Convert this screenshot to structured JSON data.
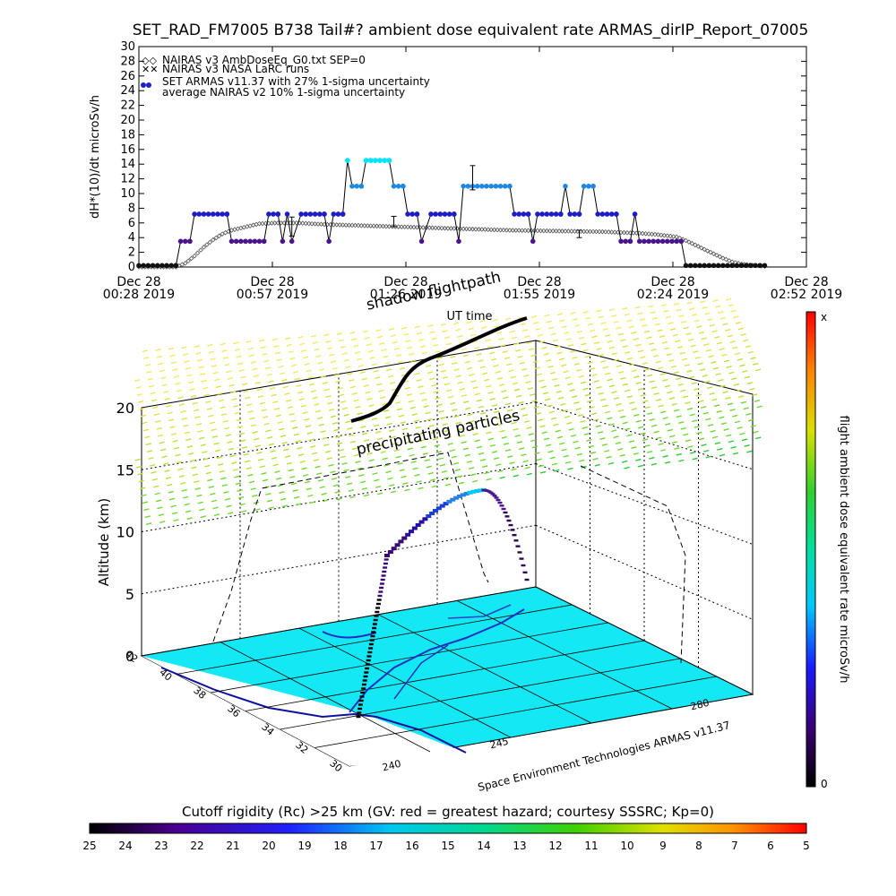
{
  "title": "SET_RAD_FM7005  B738 Tail#? ambient dose equivalent rate ARMAS_dirIP_Report_07005",
  "chart_data": [
    {
      "type": "line",
      "ylabel": "dH*(10)/dt microSv/h",
      "xlabel": "UT time",
      "ylim": [
        0,
        30
      ],
      "yticks": [
        "0",
        "2",
        "4",
        "6",
        "8",
        "10",
        "12",
        "14",
        "16",
        "18",
        "20",
        "22",
        "24",
        "26",
        "28",
        "30"
      ],
      "xtick_labels": [
        {
          "top": "Dec 28",
          "bottom": "00:28 2019"
        },
        {
          "top": "Dec 28",
          "bottom": "00:57 2019"
        },
        {
          "top": "Dec 28",
          "bottom": "01:26 2019"
        },
        {
          "top": "Dec 28",
          "bottom": "01:55 2019"
        },
        {
          "top": "Dec 28",
          "bottom": "02:24 2019"
        },
        {
          "top": "Dec 28",
          "bottom": "02:52 2019"
        }
      ],
      "x_minutes_domain": [
        0,
        144
      ],
      "legend": [
        "NAIRAS v3 AmbDoseEq_G0.txt SEP=0",
        "NAIRAS v3 NASA LaRC runs",
        "SET ARMAS v11.37 with 27% 1-sigma uncertainty",
        "average NAIRAS v2 10% 1-sigma uncertainty"
      ],
      "armas_series": [
        [
          0,
          0.2
        ],
        [
          8,
          0.2
        ],
        [
          9,
          3.5
        ],
        [
          11,
          3.5
        ],
        [
          12,
          7.2
        ],
        [
          19,
          7.2
        ],
        [
          20,
          3.5
        ],
        [
          27,
          3.5
        ],
        [
          28,
          7.2
        ],
        [
          30,
          7.2
        ],
        [
          31,
          3.5
        ],
        [
          32,
          7.2
        ],
        [
          33,
          3.5
        ],
        [
          35,
          7.2
        ],
        [
          40,
          7.2
        ],
        [
          41,
          3.5
        ],
        [
          42,
          7.2
        ],
        [
          44,
          7.2
        ],
        [
          45,
          14.5
        ],
        [
          46,
          11
        ],
        [
          48,
          11
        ],
        [
          49,
          14.5
        ],
        [
          54,
          14.5
        ],
        [
          55,
          11
        ],
        [
          57,
          11
        ],
        [
          58,
          7.2
        ],
        [
          60,
          7.2
        ],
        [
          61,
          3.5
        ],
        [
          63,
          7.2
        ],
        [
          68,
          7.2
        ],
        [
          69,
          3.5
        ],
        [
          70,
          11
        ],
        [
          80,
          11
        ],
        [
          81,
          7.2
        ],
        [
          84,
          7.2
        ],
        [
          85,
          3.5
        ],
        [
          86,
          7.2
        ],
        [
          91,
          7.2
        ],
        [
          92,
          11
        ],
        [
          93,
          7.2
        ],
        [
          95,
          7.2
        ],
        [
          96,
          11
        ],
        [
          98,
          11
        ],
        [
          99,
          7.2
        ],
        [
          103,
          7.2
        ],
        [
          104,
          3.5
        ],
        [
          106,
          3.5
        ],
        [
          107,
          7.2
        ],
        [
          108,
          3.5
        ],
        [
          117,
          3.5
        ],
        [
          118,
          0.2
        ],
        [
          135,
          0.2
        ]
      ],
      "armas_cyan_points": [
        [
          45,
          14.5
        ],
        [
          49,
          14.5
        ],
        [
          50,
          14.5
        ],
        [
          51,
          14.5
        ],
        [
          52,
          14.5
        ],
        [
          53,
          14.5
        ],
        [
          54,
          14.5
        ]
      ],
      "nairas_series": [
        [
          0,
          0
        ],
        [
          8,
          0
        ],
        [
          10,
          0.5
        ],
        [
          12,
          1.5
        ],
        [
          14,
          2.7
        ],
        [
          16,
          3.7
        ],
        [
          18,
          4.5
        ],
        [
          20,
          5
        ],
        [
          22,
          5.3
        ],
        [
          24,
          5.6
        ],
        [
          26,
          5.9
        ],
        [
          30,
          6
        ],
        [
          34,
          6
        ],
        [
          40,
          5.8
        ],
        [
          50,
          5.6
        ],
        [
          60,
          5.4
        ],
        [
          70,
          5.2
        ],
        [
          80,
          5
        ],
        [
          90,
          4.9
        ],
        [
          100,
          4.8
        ],
        [
          108,
          4.6
        ],
        [
          112,
          4.4
        ],
        [
          116,
          4.1
        ],
        [
          118,
          3.6
        ],
        [
          120,
          3
        ],
        [
          122,
          2.4
        ],
        [
          124,
          1.8
        ],
        [
          126,
          1.2
        ],
        [
          128,
          0.7
        ],
        [
          130,
          0.4
        ],
        [
          133,
          0.2
        ],
        [
          135,
          0.1
        ]
      ],
      "error_bars": [
        [
          33,
          5.5,
          4.2,
          6.8
        ],
        [
          55,
          6.2,
          5.5,
          6.9
        ],
        [
          72,
          12,
          10.5,
          13.8
        ],
        [
          95,
          4.5,
          4,
          5
        ]
      ]
    },
    {
      "type": "scatter",
      "title": "flight ambient dose equivalent rate microSv/h",
      "zlabel": "Altitude (km)",
      "zticks": [
        "0",
        "5",
        "10",
        "15",
        "20"
      ],
      "lat_ticks": [
        "42",
        "40",
        "38",
        "36",
        "34",
        "32",
        "30"
      ],
      "lon_ticks": [
        "240",
        "245",
        "280"
      ],
      "lon_axis_label": "Space Environment Technologies ARMAS v11.37",
      "annotations": [
        "shadow flightpath",
        "precipitating particles"
      ],
      "colorbar_top": "x",
      "colorbar_bottom": "0"
    },
    {
      "type": "heatmap",
      "title": "Cutoff rigidity (Rc) >25 km (GV: red = greatest hazard; courtesy SSSRC; Kp=0)",
      "ticks": [
        "25",
        "24",
        "23",
        "22",
        "21",
        "20",
        "19",
        "18",
        "17",
        "16",
        "15",
        "14",
        "13",
        "12",
        "11",
        "10",
        "9",
        "8",
        "7",
        "6",
        "5"
      ]
    }
  ]
}
